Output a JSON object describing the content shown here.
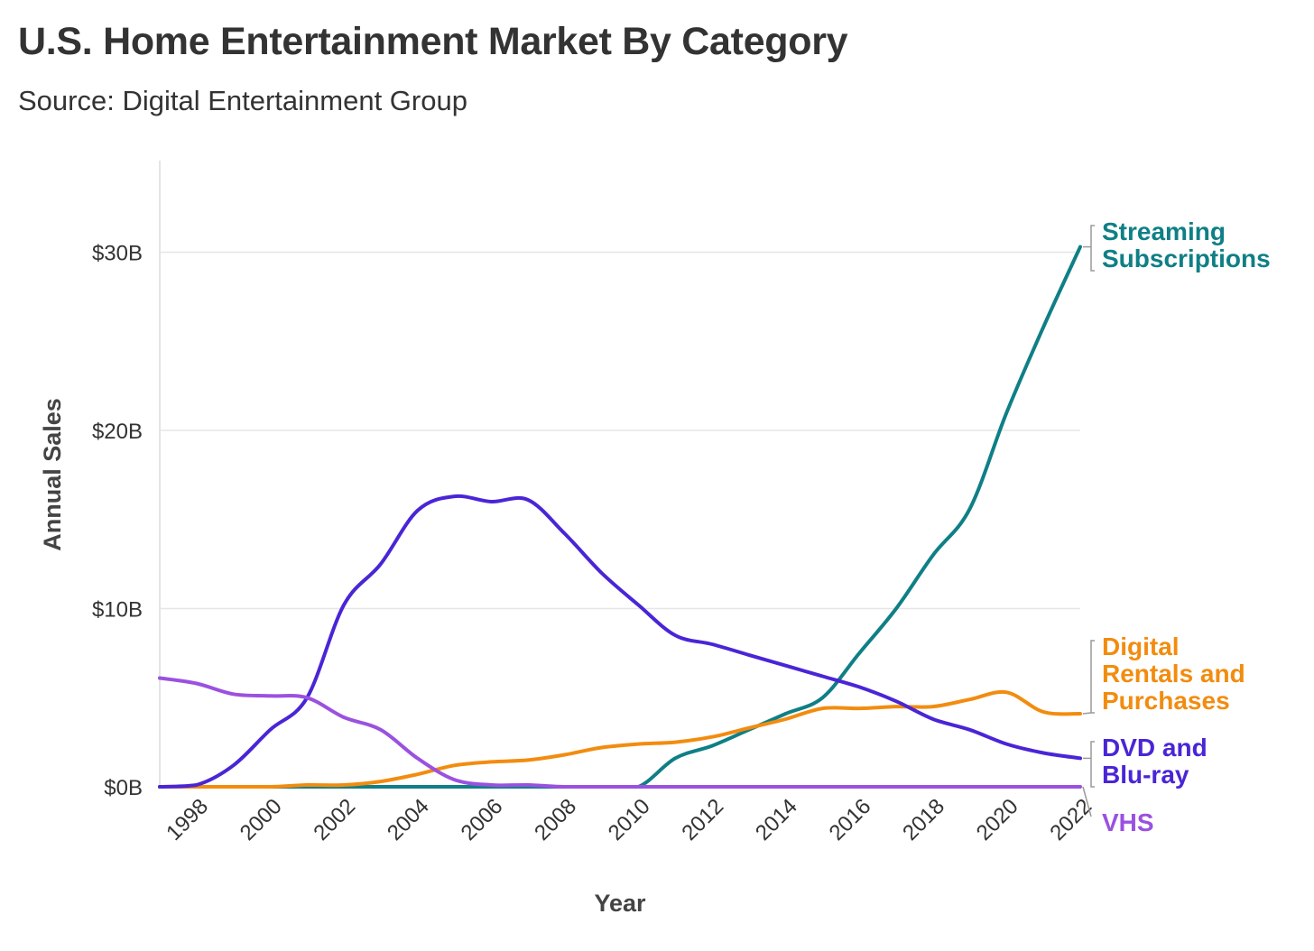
{
  "title": "U.S. Home Entertainment Market By Category",
  "subtitle": "Source: Digital Entertainment Group",
  "chart_data": {
    "type": "line",
    "xlabel": "Year",
    "ylabel": "Annual Sales",
    "xlim": [
      1997,
      2022
    ],
    "ylim": [
      0,
      35
    ],
    "yticks": [
      0,
      10,
      20,
      30
    ],
    "ytick_labels": [
      "$0B",
      "$10B",
      "$20B",
      "$30B"
    ],
    "xticks": [
      1998,
      2000,
      2002,
      2004,
      2006,
      2008,
      2010,
      2012,
      2014,
      2016,
      2018,
      2020,
      2022
    ],
    "xtick_labels": [
      "1998",
      "2000",
      "2002",
      "2004",
      "2006",
      "2008",
      "2010",
      "2012",
      "2014",
      "2016",
      "2018",
      "2020",
      "2022"
    ],
    "grid": true,
    "units": "billions of USD",
    "x": [
      1997,
      1998,
      1999,
      2000,
      2001,
      2002,
      2003,
      2004,
      2005,
      2006,
      2007,
      2008,
      2009,
      2010,
      2011,
      2012,
      2013,
      2014,
      2015,
      2016,
      2017,
      2018,
      2019,
      2020,
      2021,
      2022
    ],
    "series": [
      {
        "name": "Streaming Subscriptions",
        "label_lines": [
          "Streaming",
          "Subscriptions"
        ],
        "color": "#0f7f86",
        "values": [
          0,
          0,
          0,
          0,
          0,
          0,
          0,
          0,
          0,
          0,
          0,
          0,
          0,
          0,
          1.6,
          2.3,
          3.2,
          4.1,
          5.0,
          7.5,
          10.0,
          13.0,
          15.6,
          21.0,
          25.8,
          30.3
        ]
      },
      {
        "name": "Digital Rentals and Purchases",
        "label_lines": [
          "Digital",
          "Rentals and",
          "Purchases"
        ],
        "color": "#f28c0f",
        "values": [
          0,
          0,
          0,
          0,
          0.1,
          0.1,
          0.3,
          0.7,
          1.2,
          1.4,
          1.5,
          1.8,
          2.2,
          2.4,
          2.5,
          2.8,
          3.3,
          3.8,
          4.4,
          4.4,
          4.5,
          4.5,
          4.9,
          5.3,
          4.2,
          4.1
        ]
      },
      {
        "name": "DVD and Blu-ray",
        "label_lines": [
          "DVD and",
          "Blu-ray"
        ],
        "color": "#4a25d6",
        "values": [
          0,
          0.1,
          1.2,
          3.2,
          5.0,
          10.2,
          12.5,
          15.5,
          16.3,
          16.0,
          16.1,
          14.2,
          12.0,
          10.2,
          8.5,
          8.0,
          7.4,
          6.8,
          6.2,
          5.6,
          4.8,
          3.8,
          3.2,
          2.4,
          1.9,
          1.6
        ]
      },
      {
        "name": "VHS",
        "label_lines": [
          "VHS"
        ],
        "color": "#9b51e0",
        "values": [
          6.1,
          5.8,
          5.2,
          5.1,
          5.0,
          3.9,
          3.2,
          1.6,
          0.4,
          0.1,
          0.1,
          0,
          0,
          0,
          0,
          0,
          0,
          0,
          0,
          0,
          0,
          0,
          0,
          0,
          0,
          0
        ]
      }
    ]
  }
}
